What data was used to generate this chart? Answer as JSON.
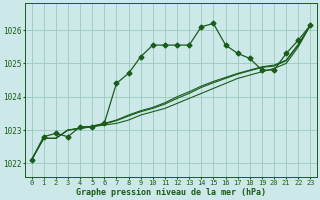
{
  "title": "Graphe pression niveau de la mer (hPa)",
  "bg_color": "#cce8e8",
  "grid_color": "#99ccbb",
  "line_color": "#1a5c1a",
  "x_ticks": [
    0,
    1,
    2,
    3,
    4,
    5,
    6,
    7,
    8,
    9,
    10,
    11,
    12,
    13,
    14,
    15,
    16,
    17,
    18,
    19,
    20,
    21,
    22,
    23
  ],
  "ylim": [
    1021.6,
    1026.8
  ],
  "yticks": [
    1022,
    1023,
    1024,
    1025,
    1026
  ],
  "series1": [
    1022.1,
    1022.8,
    1022.9,
    1022.8,
    1023.1,
    1023.1,
    1023.2,
    1024.4,
    1024.7,
    1025.2,
    1025.55,
    1025.55,
    1025.55,
    1025.55,
    1026.1,
    1026.2,
    1025.55,
    1025.3,
    1025.15,
    1024.8,
    1024.8,
    1025.3,
    1025.7,
    1026.15
  ],
  "series2": [
    1022.1,
    1022.75,
    1022.75,
    1023.0,
    1023.05,
    1023.1,
    1023.15,
    1023.2,
    1023.3,
    1023.45,
    1023.55,
    1023.65,
    1023.8,
    1023.95,
    1024.1,
    1024.25,
    1024.4,
    1024.55,
    1024.65,
    1024.75,
    1024.85,
    1025.0,
    1025.5,
    1026.15
  ],
  "series3": [
    1022.1,
    1022.75,
    1022.75,
    1023.0,
    1023.05,
    1023.1,
    1023.18,
    1023.28,
    1023.42,
    1023.55,
    1023.65,
    1023.78,
    1023.95,
    1024.1,
    1024.28,
    1024.42,
    1024.55,
    1024.68,
    1024.78,
    1024.88,
    1024.92,
    1025.08,
    1025.55,
    1026.15
  ],
  "series4": [
    1022.1,
    1022.75,
    1022.75,
    1023.0,
    1023.05,
    1023.12,
    1023.2,
    1023.3,
    1023.45,
    1023.58,
    1023.68,
    1023.82,
    1024.0,
    1024.15,
    1024.32,
    1024.46,
    1024.58,
    1024.7,
    1024.8,
    1024.9,
    1024.95,
    1025.1,
    1025.58,
    1026.15
  ]
}
